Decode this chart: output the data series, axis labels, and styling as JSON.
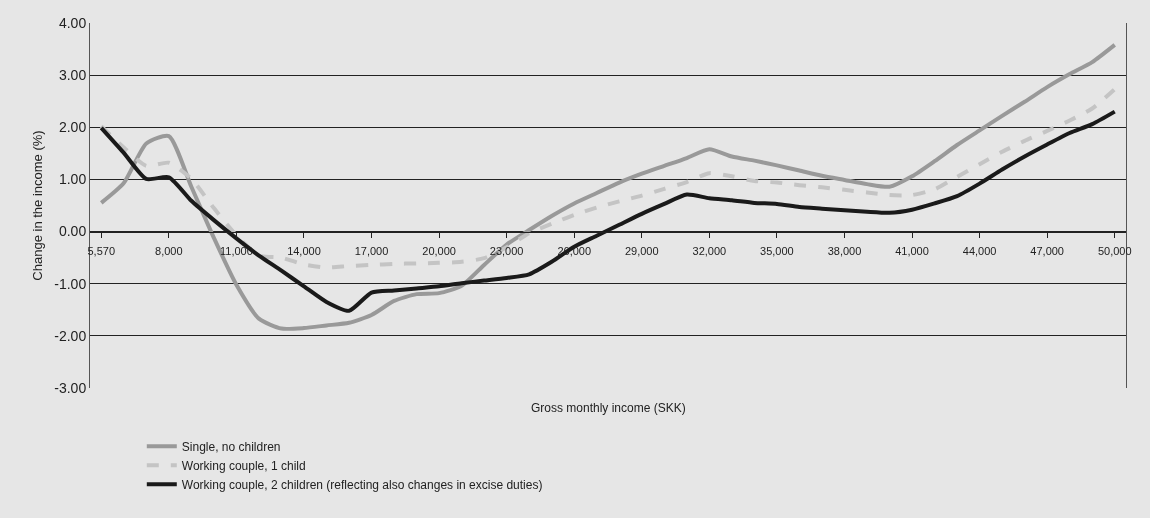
{
  "chart_data": {
    "type": "line",
    "xlabel": "Gross monthly income (SKK)",
    "ylabel": "Change in the income (%)",
    "categories": [
      "5,570",
      null,
      null,
      "8,000",
      null,
      null,
      "11,000",
      null,
      null,
      "14,000",
      null,
      null,
      "17,000",
      null,
      null,
      "20,000",
      null,
      null,
      "23,000",
      null,
      null,
      "26,000",
      null,
      null,
      "29,000",
      null,
      null,
      "32,000",
      null,
      null,
      "35,000",
      null,
      null,
      "38,000",
      null,
      null,
      "41,000",
      null,
      null,
      "44,000",
      null,
      null,
      "47,000",
      null,
      null,
      "50,000"
    ],
    "series": [
      {
        "name": "Single, no children",
        "color": "#999999",
        "line_style": "solid",
        "values": [
          0.55,
          0.93,
          1.69,
          1.83,
          0.86,
          -0.12,
          -1.02,
          -1.67,
          -1.86,
          -1.85,
          -1.8,
          -1.75,
          -1.6,
          -1.33,
          -1.2,
          -1.18,
          -1.04,
          -0.64,
          -0.25,
          0.03,
          0.3,
          0.54,
          0.74,
          0.94,
          1.11,
          1.26,
          1.41,
          1.58,
          1.44,
          1.36,
          1.27,
          1.17,
          1.07,
          0.99,
          0.91,
          0.86,
          1.06,
          1.35,
          1.66,
          1.94,
          2.22,
          2.49,
          2.77,
          3.02,
          3.25,
          3.58
        ]
      },
      {
        "name": "Working couple, 1 child",
        "color": "#c4c4c4",
        "line_style": "dashed",
        "values": [
          2.02,
          1.61,
          1.26,
          1.32,
          1.01,
          0.45,
          -0.07,
          -0.46,
          -0.5,
          -0.63,
          -0.69,
          -0.66,
          -0.64,
          -0.62,
          -0.61,
          -0.6,
          -0.58,
          -0.51,
          -0.3,
          -0.03,
          0.15,
          0.32,
          0.46,
          0.58,
          0.69,
          0.82,
          0.95,
          1.12,
          1.06,
          0.97,
          0.94,
          0.89,
          0.85,
          0.8,
          0.75,
          0.7,
          0.7,
          0.81,
          1.05,
          1.29,
          1.53,
          1.74,
          1.93,
          2.13,
          2.36,
          2.73
        ]
      },
      {
        "name": "Working couple, 2 children (reflecting also changes in excise duties)",
        "color": "#1a1a1a",
        "line_style": "solid",
        "values": [
          1.99,
          1.51,
          1.01,
          1.04,
          0.59,
          0.22,
          -0.13,
          -0.46,
          -0.75,
          -1.05,
          -1.35,
          -1.52,
          -1.17,
          -1.13,
          -1.09,
          -1.05,
          -0.99,
          -0.94,
          -0.89,
          -0.82,
          -0.58,
          -0.29,
          -0.08,
          0.13,
          0.34,
          0.53,
          0.71,
          0.64,
          0.6,
          0.55,
          0.53,
          0.47,
          0.44,
          0.41,
          0.38,
          0.36,
          0.42,
          0.54,
          0.68,
          0.92,
          1.19,
          1.44,
          1.67,
          1.89,
          2.06,
          2.3
        ]
      }
    ],
    "ylim": [
      -3,
      4
    ],
    "yticks": [
      {
        "value": -3,
        "label": "-3.00"
      },
      {
        "value": -2,
        "label": "-2.00"
      },
      {
        "value": -1,
        "label": "-1.00"
      },
      {
        "value": 0,
        "label": "0.00"
      },
      {
        "value": 1,
        "label": "1.00"
      },
      {
        "value": 2,
        "label": "2.00"
      },
      {
        "value": 3,
        "label": "3.00"
      },
      {
        "value": 4,
        "label": "4.00"
      }
    ],
    "grid": "y",
    "legend": "bottom left",
    "marker": "none"
  }
}
